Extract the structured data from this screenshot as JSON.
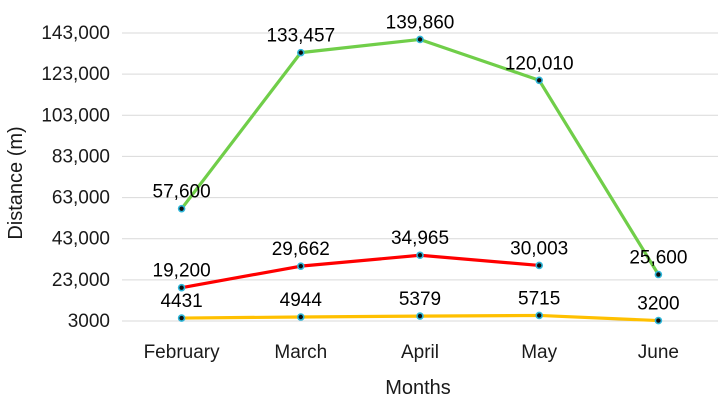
{
  "chart_data": {
    "type": "line",
    "title": "",
    "xlabel": "Months",
    "ylabel": "Distance (m)",
    "categories": [
      "February",
      "March",
      "April",
      "May",
      "June"
    ],
    "ylim": [
      3000,
      143000
    ],
    "ytick_values": [
      3000,
      23000,
      43000,
      63000,
      83000,
      103000,
      123000,
      143000
    ],
    "ytick_labels": [
      "3000",
      "23,000",
      "43,000",
      "63,000",
      "83,000",
      "103,000",
      "123,000",
      "143,000"
    ],
    "grid": "horizontal",
    "legend_position": "none",
    "marker": {
      "fill": "#0d0d0d",
      "ring": "#2eb6d9"
    },
    "series": [
      {
        "id": "green-series",
        "color": "#70ce49",
        "values": [
          57600,
          133457,
          139860,
          120010,
          25600
        ],
        "labels": [
          "57,600",
          "133,457",
          "139,860",
          "120,010",
          "25,600"
        ]
      },
      {
        "id": "red-series",
        "color": "#ff0000",
        "values": [
          19200,
          29662,
          34965,
          30003,
          null
        ],
        "labels": [
          "19,200",
          "29,662",
          "34,965",
          "30,003",
          null
        ]
      },
      {
        "id": "orange-series",
        "color": "#ffc000",
        "values": [
          4431,
          4944,
          5379,
          5715,
          3200
        ],
        "labels": [
          "4431",
          "4944",
          "5379",
          "5715",
          "3200"
        ]
      }
    ]
  }
}
